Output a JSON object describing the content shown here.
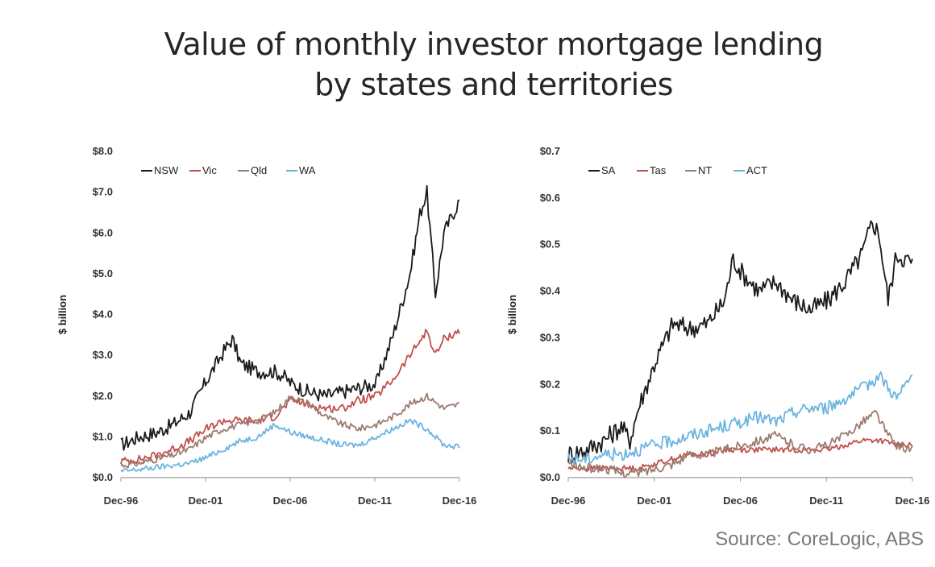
{
  "title_lines": [
    "Value of monthly investor mortgage lending",
    "by states and territories"
  ],
  "source": "Source: CoreLogic, ABS",
  "colors": {
    "black": "#1a1a1a",
    "red": "#c0504d",
    "brown": "#9c7b6f",
    "blue": "#6cb4df",
    "axis": "#9a9a9a"
  },
  "chart_data": [
    {
      "type": "line",
      "ylabel": "$ billion",
      "ylim": [
        0,
        8
      ],
      "yticks": [
        0,
        1,
        2,
        3,
        4,
        5,
        6,
        7,
        8
      ],
      "ytick_labels": [
        "$0.0",
        "$1.0",
        "$2.0",
        "$3.0",
        "$4.0",
        "$5.0",
        "$6.0",
        "$7.0",
        "$8.0"
      ],
      "xlim": [
        1996.92,
        2016.92
      ],
      "xticks": [
        1996.92,
        2001.92,
        2006.92,
        2011.92,
        2016.92
      ],
      "xtick_labels": [
        "Dec-96",
        "Dec-01",
        "Dec-06",
        "Dec-11",
        "Dec-16"
      ],
      "legend_position": "top-left",
      "grid": false,
      "series": [
        {
          "name": "NSW",
          "color": "#1a1a1a",
          "noise": 0.18,
          "x": [
            1996.92,
            1998,
            1999,
            2000,
            2001,
            2002,
            2003,
            2003.5,
            2004,
            2005,
            2006,
            2006.5,
            2007,
            2008,
            2009,
            2010,
            2011,
            2012,
            2013,
            2014,
            2014.6,
            2015,
            2015.5,
            2016,
            2016.92
          ],
          "y": [
            0.8,
            1.0,
            1.1,
            1.3,
            1.6,
            2.4,
            3.1,
            3.4,
            2.8,
            2.6,
            2.6,
            2.5,
            2.3,
            2.1,
            2.0,
            2.1,
            2.2,
            2.3,
            3.5,
            5.0,
            6.5,
            7.0,
            4.5,
            6.0,
            6.8
          ]
        },
        {
          "name": "Vic",
          "color": "#c0504d",
          "noise": 0.1,
          "x": [
            1996.92,
            1998,
            1999,
            2000,
            2001,
            2002,
            2003,
            2004,
            2005,
            2006,
            2007,
            2008,
            2009,
            2010,
            2011,
            2012,
            2013,
            2014,
            2015,
            2015.5,
            2016,
            2016.92
          ],
          "y": [
            0.4,
            0.45,
            0.55,
            0.7,
            0.9,
            1.2,
            1.4,
            1.4,
            1.4,
            1.5,
            1.9,
            1.8,
            1.7,
            1.7,
            1.9,
            2.0,
            2.4,
            3.0,
            3.6,
            3.0,
            3.4,
            3.6
          ]
        },
        {
          "name": "Qld",
          "color": "#9c7b6f",
          "noise": 0.08,
          "x": [
            1996.92,
            1998,
            1999,
            2000,
            2001,
            2002,
            2003,
            2004,
            2005,
            2006,
            2007,
            2008,
            2009,
            2010,
            2011,
            2012,
            2013,
            2014,
            2015,
            2016,
            2016.92
          ],
          "y": [
            0.3,
            0.35,
            0.45,
            0.55,
            0.7,
            1.0,
            1.2,
            1.3,
            1.4,
            1.6,
            2.0,
            1.8,
            1.5,
            1.3,
            1.2,
            1.3,
            1.5,
            1.8,
            2.0,
            1.7,
            1.8
          ]
        },
        {
          "name": "WA",
          "color": "#6cb4df",
          "noise": 0.07,
          "x": [
            1996.92,
            1998,
            1999,
            2000,
            2001,
            2002,
            2003,
            2004,
            2005,
            2006,
            2007,
            2008,
            2009,
            2010,
            2011,
            2012,
            2013,
            2014,
            2015,
            2016,
            2016.92
          ],
          "y": [
            0.15,
            0.2,
            0.25,
            0.3,
            0.35,
            0.5,
            0.7,
            0.9,
            1.0,
            1.3,
            1.1,
            1.0,
            0.9,
            0.8,
            0.8,
            1.0,
            1.2,
            1.4,
            1.2,
            0.8,
            0.75
          ]
        }
      ]
    },
    {
      "type": "line",
      "ylabel": "$ billion",
      "ylim": [
        0,
        0.7
      ],
      "yticks": [
        0,
        0.1,
        0.2,
        0.3,
        0.4,
        0.5,
        0.6,
        0.7
      ],
      "ytick_labels": [
        "$0.0",
        "$0.1",
        "$0.2",
        "$0.3",
        "$0.4",
        "$0.5",
        "$0.6",
        "$0.7"
      ],
      "xlim": [
        1996.92,
        2016.92
      ],
      "xticks": [
        1996.92,
        2001.92,
        2006.92,
        2011.92,
        2016.92
      ],
      "xtick_labels": [
        "Dec-96",
        "Dec-01",
        "Dec-06",
        "Dec-11",
        "Dec-16"
      ],
      "legend_position": "top-left",
      "grid": false,
      "series": [
        {
          "name": "SA",
          "color": "#1a1a1a",
          "noise": 0.022,
          "x": [
            1996.92,
            1998,
            1999,
            2000,
            2000.5,
            2001,
            2002,
            2003,
            2004,
            2005,
            2006,
            2006.5,
            2007,
            2008,
            2009,
            2010,
            2011,
            2012,
            2013,
            2014,
            2014.6,
            2015,
            2015.5,
            2016,
            2016.92
          ],
          "y": [
            0.05,
            0.06,
            0.08,
            0.11,
            0.08,
            0.15,
            0.25,
            0.33,
            0.32,
            0.33,
            0.38,
            0.47,
            0.44,
            0.4,
            0.42,
            0.38,
            0.36,
            0.38,
            0.42,
            0.48,
            0.55,
            0.52,
            0.38,
            0.48,
            0.46
          ]
        },
        {
          "name": "Tas",
          "color": "#c0504d",
          "noise": 0.006,
          "x": [
            1996.92,
            1998,
            1999,
            2000,
            2001,
            2002,
            2003,
            2004,
            2005,
            2006,
            2007,
            2008,
            2009,
            2010,
            2011,
            2012,
            2013,
            2014,
            2015,
            2016,
            2016.92
          ],
          "y": [
            0.02,
            0.02,
            0.02,
            0.02,
            0.02,
            0.03,
            0.04,
            0.05,
            0.05,
            0.06,
            0.06,
            0.06,
            0.06,
            0.06,
            0.06,
            0.06,
            0.07,
            0.08,
            0.08,
            0.07,
            0.07
          ]
        },
        {
          "name": "NT",
          "color": "#9c7b6f",
          "noise": 0.01,
          "x": [
            1996.92,
            1998,
            1999,
            2000,
            2001,
            2002,
            2003,
            2004,
            2005,
            2006,
            2007,
            2008,
            2009,
            2010,
            2011,
            2012,
            2013,
            2014,
            2014.8,
            2015.5,
            2016,
            2016.92
          ],
          "y": [
            0.03,
            0.02,
            0.02,
            0.01,
            0.01,
            0.02,
            0.03,
            0.05,
            0.05,
            0.06,
            0.07,
            0.08,
            0.09,
            0.07,
            0.06,
            0.07,
            0.09,
            0.12,
            0.14,
            0.09,
            0.07,
            0.06
          ]
        },
        {
          "name": "ACT",
          "color": "#6cb4df",
          "noise": 0.014,
          "x": [
            1996.92,
            1998,
            1999,
            2000,
            2001,
            2002,
            2003,
            2004,
            2005,
            2006,
            2007,
            2008,
            2009,
            2010,
            2011,
            2012,
            2013,
            2014,
            2015,
            2016,
            2016.92
          ],
          "y": [
            0.04,
            0.04,
            0.05,
            0.05,
            0.06,
            0.07,
            0.08,
            0.09,
            0.1,
            0.11,
            0.12,
            0.13,
            0.12,
            0.14,
            0.15,
            0.15,
            0.17,
            0.19,
            0.22,
            0.17,
            0.22
          ]
        }
      ]
    }
  ]
}
